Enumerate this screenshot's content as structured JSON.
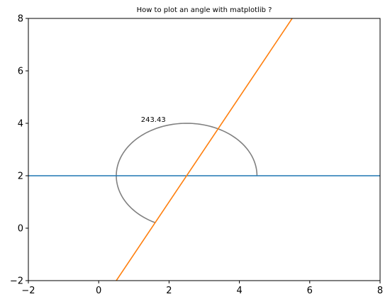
{
  "chart_data": {
    "type": "line",
    "title": "How to plot an angle with matplotlib ?",
    "xlabel": "",
    "ylabel": "",
    "xlim": [
      -2,
      8
    ],
    "ylim": [
      -2,
      8
    ],
    "xticks": [
      -2,
      0,
      2,
      4,
      6,
      8
    ],
    "yticks": [
      -2,
      0,
      2,
      4,
      6,
      8
    ],
    "xtick_labels": [
      "−2",
      "0",
      "2",
      "4",
      "6",
      "8"
    ],
    "ytick_labels": [
      "−2",
      "0",
      "2",
      "4",
      "6",
      "8"
    ],
    "grid": false,
    "series": [
      {
        "color": "#1f77b4",
        "x": [
          -2,
          8
        ],
        "y": [
          2,
          2
        ]
      },
      {
        "color": "#ff7f0e",
        "x": [
          0.5,
          5.5
        ],
        "y": [
          -2,
          8
        ]
      }
    ],
    "angle_arc": {
      "color": "#808080",
      "center": [
        2.5,
        2
      ],
      "radius": 2,
      "theta_start_deg": 0,
      "theta_end_deg": 243.43
    },
    "annotations": [
      {
        "text": "243.43",
        "x": 1.2,
        "y": 4.05
      }
    ]
  }
}
